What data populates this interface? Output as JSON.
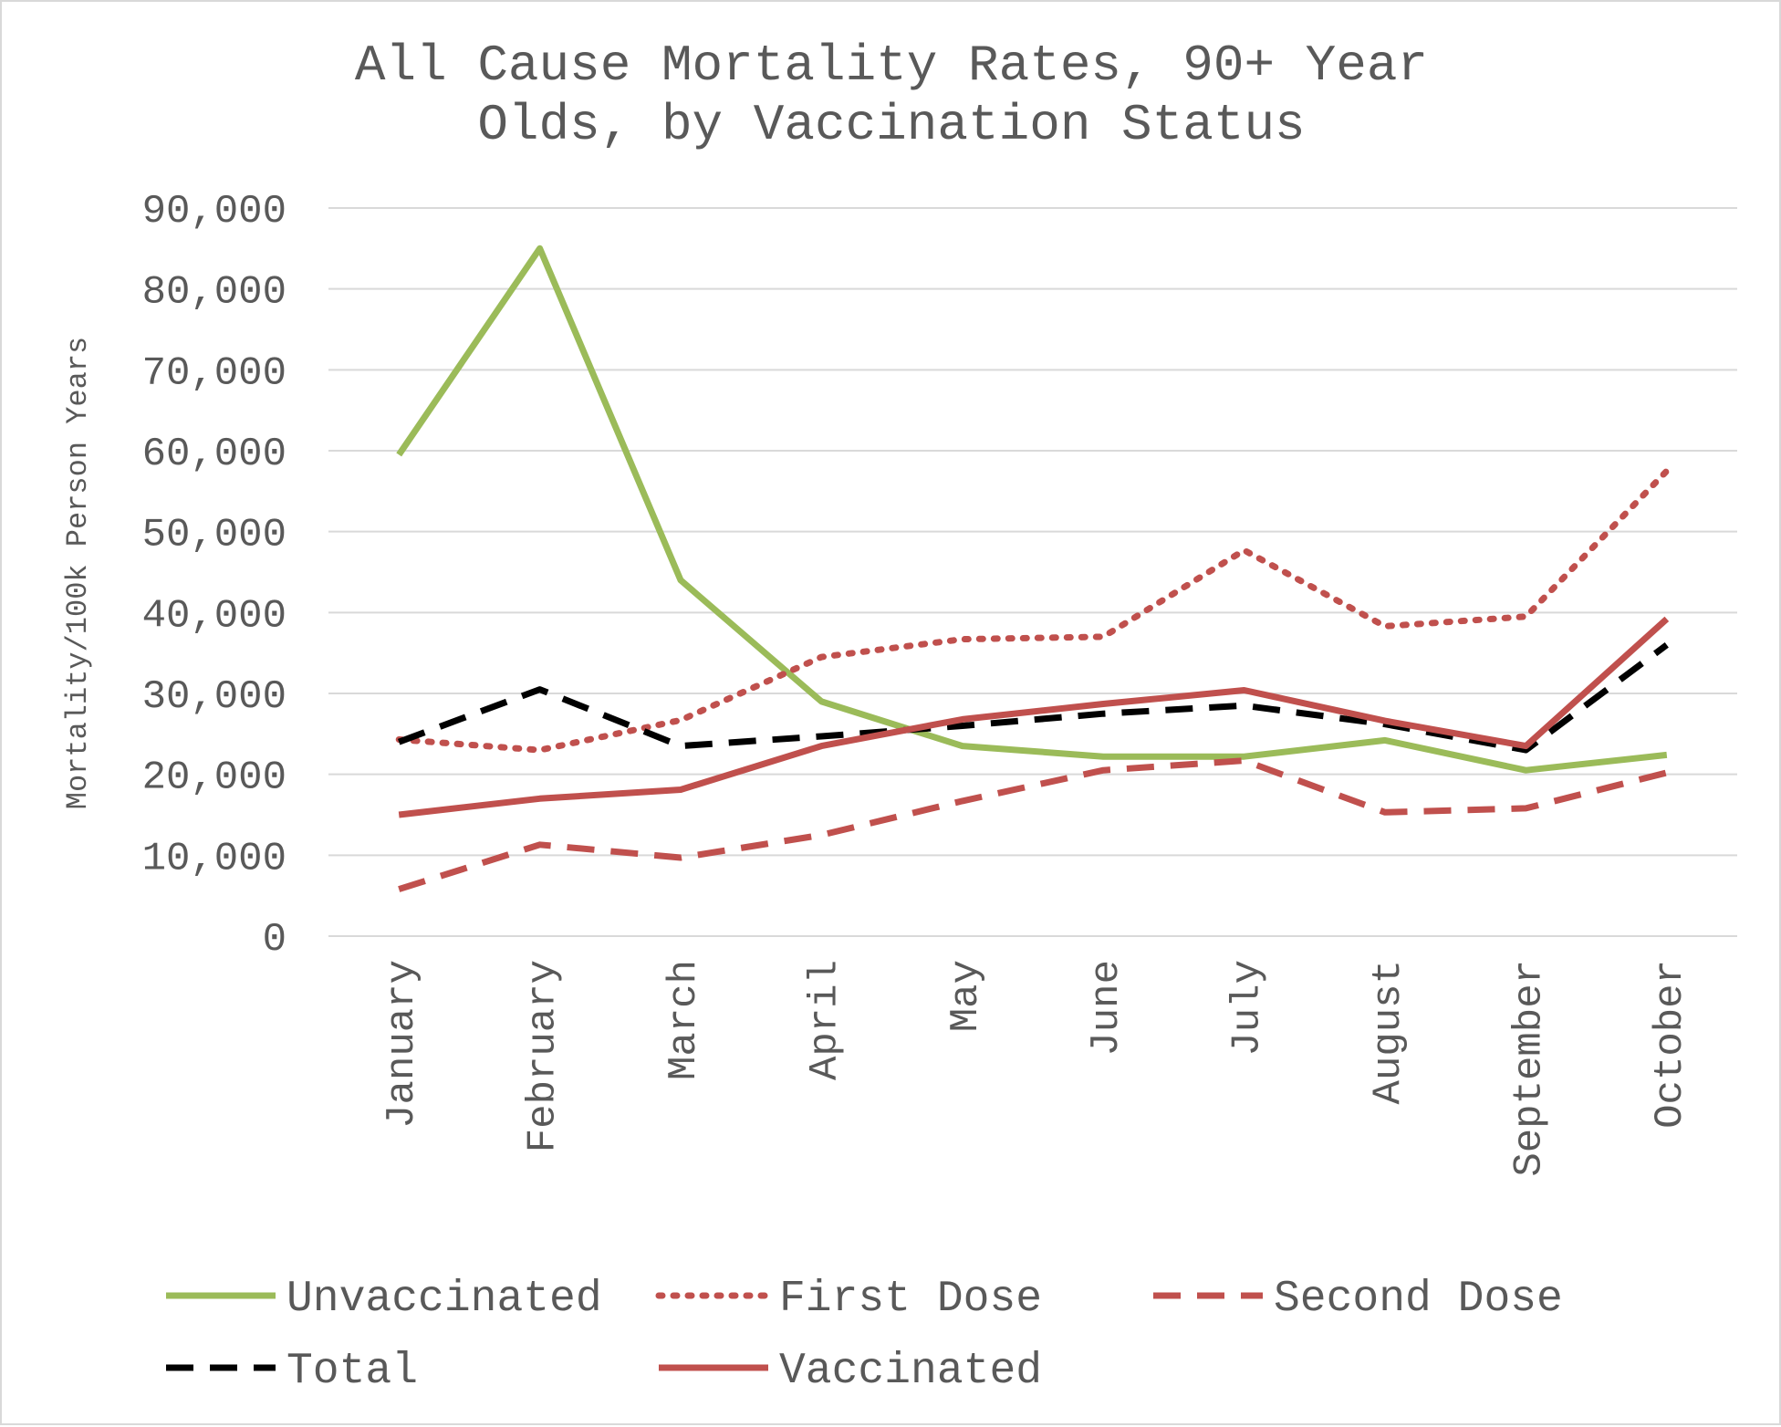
{
  "chart_data": {
    "type": "line",
    "title_lines": [
      "All Cause Mortality Rates, 90+ Year",
      "Olds, by Vaccination Status"
    ],
    "ylabel": "Mortality/100k Person Years",
    "xlabel": "",
    "categories": [
      "January",
      "February",
      "March",
      "April",
      "May",
      "June",
      "July",
      "August",
      "September",
      "October"
    ],
    "ylim": [
      0,
      90000
    ],
    "yticks": [
      0,
      10000,
      20000,
      30000,
      40000,
      50000,
      60000,
      70000,
      80000,
      90000
    ],
    "ytick_labels": [
      "0",
      "10,000",
      "20,000",
      "30,000",
      "40,000",
      "50,000",
      "60,000",
      "70,000",
      "80,000",
      "90,000"
    ],
    "grid": true,
    "legend_position": "bottom",
    "series": [
      {
        "name": "Unvaccinated",
        "color": "#9bbb59",
        "style": "solid",
        "values": [
          59500,
          85000,
          44000,
          29000,
          23500,
          22200,
          22200,
          24200,
          20500,
          22400
        ]
      },
      {
        "name": "First Dose",
        "color": "#c0504d",
        "style": "dotted",
        "values": [
          24300,
          23000,
          26700,
          34500,
          36700,
          37000,
          47700,
          38300,
          39500,
          57500
        ]
      },
      {
        "name": "Second Dose",
        "color": "#c0504d",
        "style": "dashed",
        "values": [
          5800,
          11300,
          9700,
          12500,
          16700,
          20500,
          21700,
          15300,
          15800,
          20200
        ]
      },
      {
        "name": "Total",
        "color": "#000000",
        "style": "dashed",
        "values": [
          24000,
          30500,
          23500,
          24700,
          26000,
          27500,
          28500,
          26200,
          23000,
          36000
        ]
      },
      {
        "name": "Vaccinated",
        "color": "#c0504d",
        "style": "solid",
        "values": [
          15000,
          17000,
          18100,
          23500,
          26800,
          28700,
          30400,
          26600,
          23500,
          39200
        ]
      }
    ]
  }
}
